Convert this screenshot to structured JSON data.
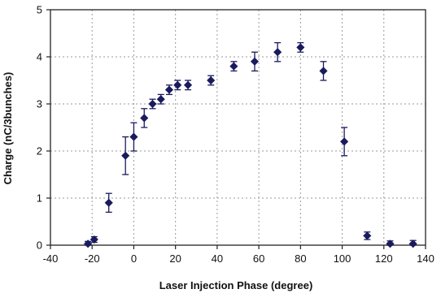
{
  "chart_data": {
    "type": "scatter",
    "title": "",
    "xlabel": "Laser Injection Phase (degree)",
    "ylabel": "Charge (nC/3bunches)",
    "xlim": [
      -40,
      140
    ],
    "ylim": [
      0,
      5
    ],
    "x_ticks": [
      -40,
      -20,
      0,
      20,
      40,
      60,
      80,
      100,
      120,
      140
    ],
    "y_ticks": [
      0,
      1,
      2,
      3,
      4,
      5
    ],
    "grid": true,
    "grid_style": "dotted",
    "marker": "diamond",
    "color": "#1a1a5e",
    "series": [
      {
        "points": [
          {
            "x": -22,
            "y": 0.03,
            "err": 0.05
          },
          {
            "x": -19,
            "y": 0.12,
            "err": 0.06
          },
          {
            "x": -12,
            "y": 0.9,
            "err": 0.2
          },
          {
            "x": -4,
            "y": 1.9,
            "err": 0.4
          },
          {
            "x": 0,
            "y": 2.3,
            "err": 0.3
          },
          {
            "x": 5,
            "y": 2.7,
            "err": 0.2
          },
          {
            "x": 9,
            "y": 3.0,
            "err": 0.1
          },
          {
            "x": 13,
            "y": 3.1,
            "err": 0.1
          },
          {
            "x": 17,
            "y": 3.3,
            "err": 0.1
          },
          {
            "x": 21,
            "y": 3.4,
            "err": 0.1
          },
          {
            "x": 26,
            "y": 3.4,
            "err": 0.1
          },
          {
            "x": 37,
            "y": 3.5,
            "err": 0.1
          },
          {
            "x": 48,
            "y": 3.8,
            "err": 0.1
          },
          {
            "x": 58,
            "y": 3.9,
            "err": 0.2
          },
          {
            "x": 69,
            "y": 4.1,
            "err": 0.2
          },
          {
            "x": 80,
            "y": 4.2,
            "err": 0.1
          },
          {
            "x": 91,
            "y": 3.7,
            "err": 0.2
          },
          {
            "x": 101,
            "y": 2.2,
            "err": 0.3
          },
          {
            "x": 112,
            "y": 0.2,
            "err": 0.08
          },
          {
            "x": 123,
            "y": 0.03,
            "err": 0.06
          },
          {
            "x": 134,
            "y": 0.03,
            "err": 0.07
          }
        ]
      }
    ]
  }
}
